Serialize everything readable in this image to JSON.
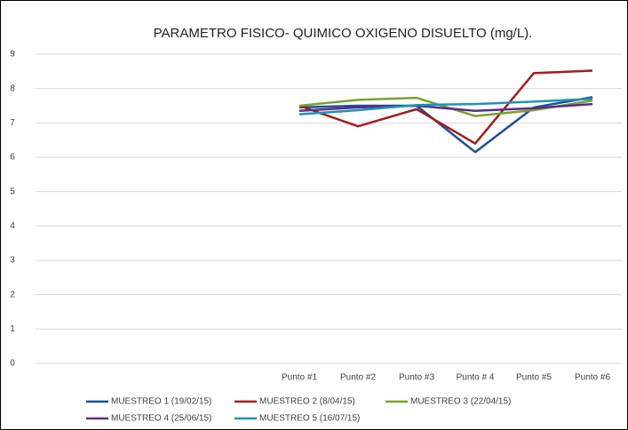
{
  "chart_data": {
    "type": "line",
    "title": "PARAMETRO FISICO- QUIMICO OXIGENO DISUELTO (mg/L).",
    "categories": [
      null,
      null,
      null,
      null,
      "Punto #1",
      "Punto #2",
      "Punto #3",
      "Punto # 4",
      "Punto #5",
      "Punto #6"
    ],
    "series": [
      {
        "name": "MUESTREO 1 (19/02/15)",
        "color": "#1f4e99",
        "values": [
          null,
          null,
          null,
          null,
          7.45,
          7.5,
          7.5,
          6.15,
          7.45,
          7.75
        ]
      },
      {
        "name": "MUESTREO 2  (8/04/15)",
        "color": "#a01e1e",
        "values": [
          null,
          null,
          null,
          null,
          7.5,
          6.9,
          7.4,
          6.4,
          8.45,
          8.52
        ]
      },
      {
        "name": "MUESTREO 3  (22/04/15)",
        "color": "#77a22f",
        "values": [
          null,
          null,
          null,
          null,
          7.5,
          7.67,
          7.73,
          7.2,
          7.37,
          7.65
        ]
      },
      {
        "name": "MUESTREO 4   (25/06/15)",
        "color": "#5b2c83",
        "values": [
          null,
          null,
          null,
          null,
          7.35,
          7.45,
          7.5,
          7.35,
          7.43,
          7.55
        ]
      },
      {
        "name": "MUESTREO 5 (16/07/15)",
        "color": "#1f93b6",
        "values": [
          null,
          null,
          null,
          null,
          7.25,
          7.37,
          7.52,
          7.55,
          7.62,
          7.7
        ]
      }
    ],
    "ylim": [
      0,
      9
    ],
    "yticks": [
      0,
      1,
      2,
      3,
      4,
      5,
      6,
      7,
      8,
      9
    ],
    "grid": true,
    "legend": "bottom"
  }
}
